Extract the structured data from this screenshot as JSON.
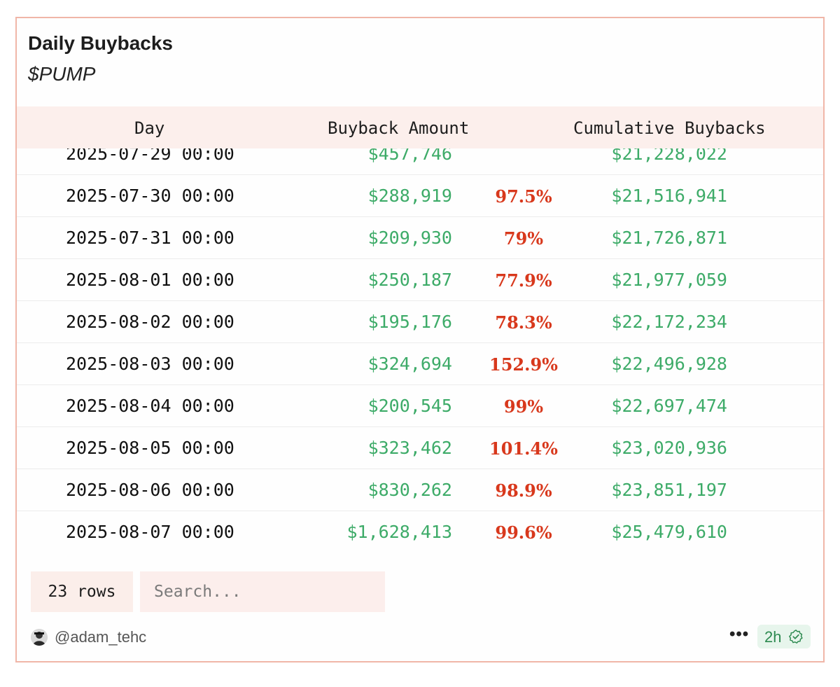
{
  "widget": {
    "title": "Daily Buybacks",
    "subtitle": "$PUMP"
  },
  "table": {
    "columns": [
      "Day",
      "Buyback Amount",
      "Cumulative Buybacks"
    ],
    "rows": [
      {
        "day": "2025-07-29 00:00",
        "amount": "$457,746",
        "pct": "",
        "cumulative": "$21,228,022"
      },
      {
        "day": "2025-07-30 00:00",
        "amount": "$288,919",
        "pct": "97.5%",
        "cumulative": "$21,516,941"
      },
      {
        "day": "2025-07-31 00:00",
        "amount": "$209,930",
        "pct": "79%",
        "cumulative": "$21,726,871"
      },
      {
        "day": "2025-08-01 00:00",
        "amount": "$250,187",
        "pct": "77.9%",
        "cumulative": "$21,977,059"
      },
      {
        "day": "2025-08-02 00:00",
        "amount": "$195,176",
        "pct": "78.3%",
        "cumulative": "$22,172,234"
      },
      {
        "day": "2025-08-03 00:00",
        "amount": "$324,694",
        "pct": "152.9%",
        "cumulative": "$22,496,928"
      },
      {
        "day": "2025-08-04 00:00",
        "amount": "$200,545",
        "pct": "99%",
        "cumulative": "$22,697,474"
      },
      {
        "day": "2025-08-05 00:00",
        "amount": "$323,462",
        "pct": "101.4%",
        "cumulative": "$23,020,936"
      },
      {
        "day": "2025-08-06 00:00",
        "amount": "$830,262",
        "pct": "98.9%",
        "cumulative": "$23,851,197"
      },
      {
        "day": "2025-08-07 00:00",
        "amount": "$1,628,413",
        "pct": "99.6%",
        "cumulative": "$25,479,610"
      }
    ]
  },
  "controls": {
    "rows_label": "23 rows",
    "search_placeholder": "Search..."
  },
  "footer": {
    "username": "@adam_tehc",
    "more_label": "•••",
    "time_label": "2h"
  },
  "colors": {
    "border": "#f0b6a8",
    "header_bg": "#fcefec",
    "green": "#3dab68",
    "red": "#d8381c"
  },
  "icons": {
    "more": "more-icon",
    "verified": "verified-check-icon",
    "avatar": "avatar"
  }
}
